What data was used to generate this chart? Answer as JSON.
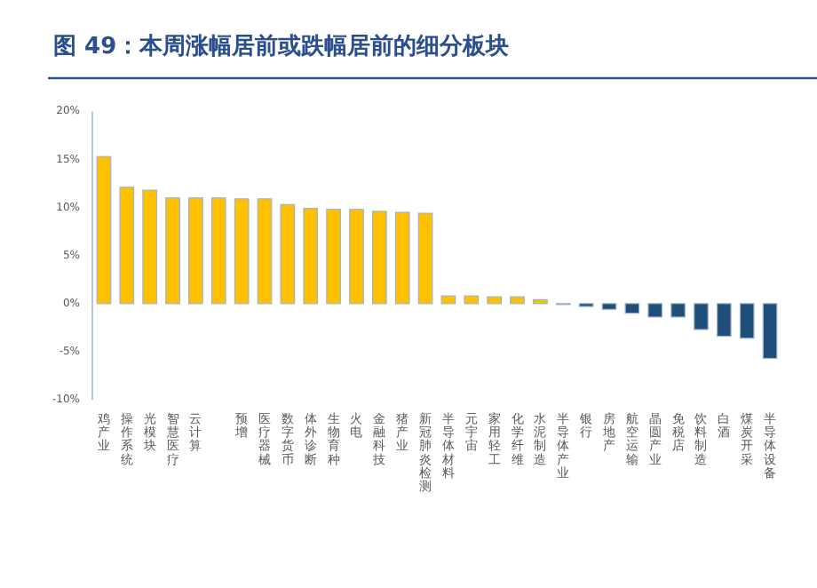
{
  "chart_data": {
    "type": "bar",
    "title": "图 49：本周涨幅居前或跌幅居前的细分板块",
    "categories": [
      "鸡产业",
      "操作系统",
      "光模块",
      "智慧医疗",
      "云计算",
      null,
      "预增",
      "医疗器械",
      "数字货币",
      "体外诊断",
      "生物育种",
      "火电",
      "金融科技",
      "猪产业",
      "新冠肺炎检测",
      "半导体材料",
      "元宇宙",
      "家用轻工",
      "化学纤维",
      "水泥制造",
      "半导体产业",
      "银行",
      "房地产",
      "航空运输",
      "晶圆产业",
      "免税店",
      "饮料制造",
      "白酒",
      "煤炭开采",
      "半导体设备"
    ],
    "values": [
      15.3,
      12.1,
      11.8,
      11.0,
      11.0,
      11.0,
      10.9,
      10.9,
      10.3,
      9.9,
      9.8,
      9.8,
      9.6,
      9.5,
      9.4,
      0.8,
      0.8,
      0.7,
      0.7,
      0.4,
      -0.1,
      -0.3,
      -0.6,
      -1.0,
      -1.4,
      -1.4,
      -2.7,
      -3.4,
      -3.6,
      -5.7
    ],
    "colors": [
      "#ffc000",
      "#ffc000",
      "#ffc000",
      "#ffc000",
      "#ffc000",
      "#ffc000",
      "#ffc000",
      "#ffc000",
      "#ffc000",
      "#ffc000",
      "#ffc000",
      "#ffc000",
      "#ffc000",
      "#ffc000",
      "#ffc000",
      "#ffc000",
      "#ffc000",
      "#ffc000",
      "#ffc000",
      "#ffc000",
      "#1f4e79",
      "#1f4e79",
      "#1f4e79",
      "#1f4e79",
      "#1f4e79",
      "#1f4e79",
      "#1f4e79",
      "#1f4e79",
      "#1f4e79",
      "#1f4e79"
    ],
    "ylim": [
      -10,
      20
    ],
    "yticks": [
      {
        "value": -10,
        "label": "-10%"
      },
      {
        "value": -5,
        "label": "-5%"
      },
      {
        "value": 0,
        "label": "0%"
      },
      {
        "value": 5,
        "label": "5%"
      },
      {
        "value": 10,
        "label": "10%"
      },
      {
        "value": 15,
        "label": "15%"
      },
      {
        "value": 20,
        "label": "20%"
      }
    ]
  }
}
